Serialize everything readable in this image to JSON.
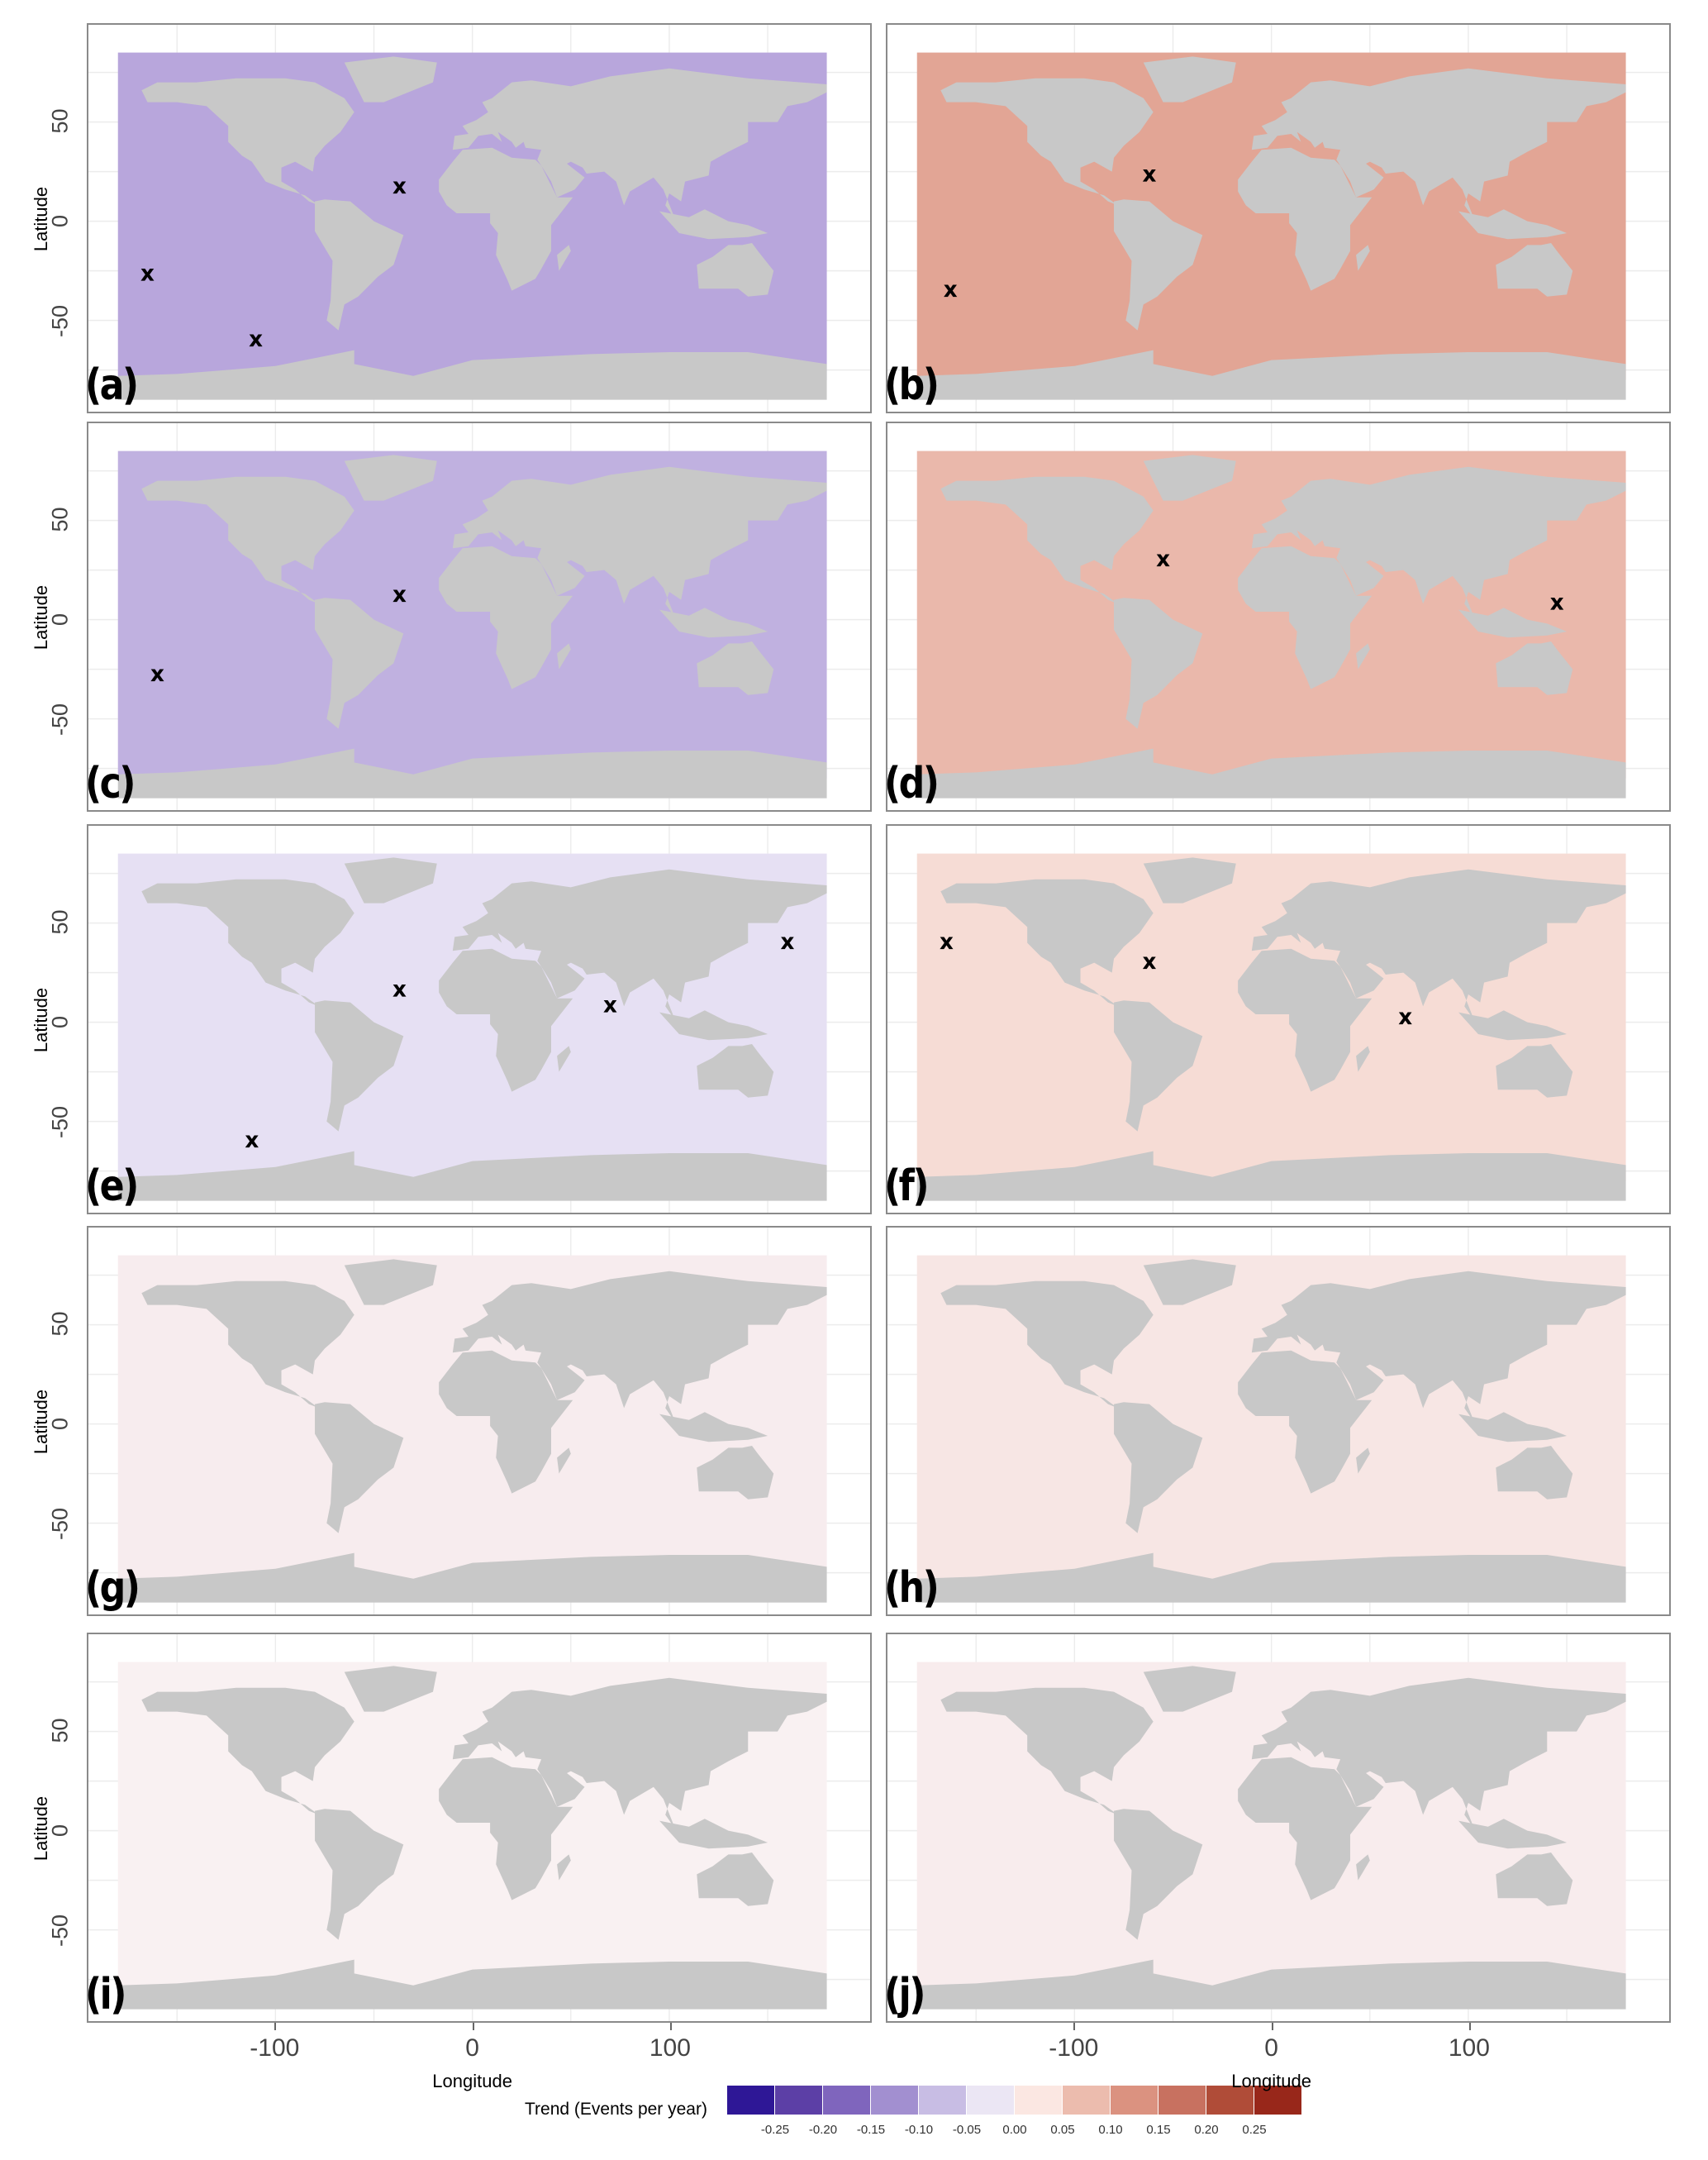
{
  "chart_data": {
    "type": "heatmap",
    "xlabel": "Longitude",
    "ylabel": "Latitude",
    "xticks": [
      -100,
      0,
      100
    ],
    "yticks": [
      -50,
      0,
      50
    ],
    "xlim": [
      -195,
      202
    ],
    "ylim": [
      -96,
      99
    ],
    "grid": true,
    "legend": {
      "title": "Trend (Events per year)",
      "placement": "bottom",
      "colors": [
        "#2e1796",
        "#5c3fa6",
        "#7f65bd",
        "#a28fd0",
        "#c8bde4",
        "#ebe6f4",
        "#fbe7e2",
        "#ecbcae",
        "#db9280",
        "#c87160",
        "#b04c38",
        "#98271a"
      ],
      "ticks": [
        "-0.25",
        "-0.20",
        "-0.15",
        "-0.10",
        "-0.05",
        "0.00",
        "0.05",
        "0.10",
        "0.15",
        "0.20",
        "0.25"
      ]
    },
    "panels": [
      {
        "label": "(a)",
        "ocean_color": "#b8a6dc",
        "markers": [
          [
            -37,
            17
          ],
          [
            -165,
            -27
          ],
          [
            -110,
            -60
          ]
        ]
      },
      {
        "label": "(b)",
        "ocean_color": "#e2a595",
        "markers": [
          [
            -62,
            23
          ],
          [
            -163,
            -35
          ]
        ]
      },
      {
        "label": "(c)",
        "ocean_color": "#c0b1e0",
        "markers": [
          [
            -37,
            12
          ],
          [
            -160,
            -28
          ]
        ]
      },
      {
        "label": "(d)",
        "ocean_color": "#eab8ab",
        "markers": [
          [
            -55,
            30
          ],
          [
            145,
            8
          ]
        ]
      },
      {
        "label": "(e)",
        "ocean_color": "#e6e0f3",
        "markers": [
          [
            -37,
            16
          ],
          [
            70,
            8
          ],
          [
            160,
            40
          ],
          [
            -112,
            -60
          ]
        ]
      },
      {
        "label": "(f)",
        "ocean_color": "#f6dcd5",
        "markers": [
          [
            -165,
            40
          ],
          [
            -62,
            30
          ],
          [
            68,
            2
          ]
        ]
      },
      {
        "label": "(g)",
        "ocean_color": "#f7ecee",
        "markers": []
      },
      {
        "label": "(h)",
        "ocean_color": "#f7e6e4",
        "markers": []
      },
      {
        "label": "(i)",
        "ocean_color": "#f9f1f2",
        "markers": []
      },
      {
        "label": "(j)",
        "ocean_color": "#f8eced",
        "markers": []
      }
    ]
  }
}
